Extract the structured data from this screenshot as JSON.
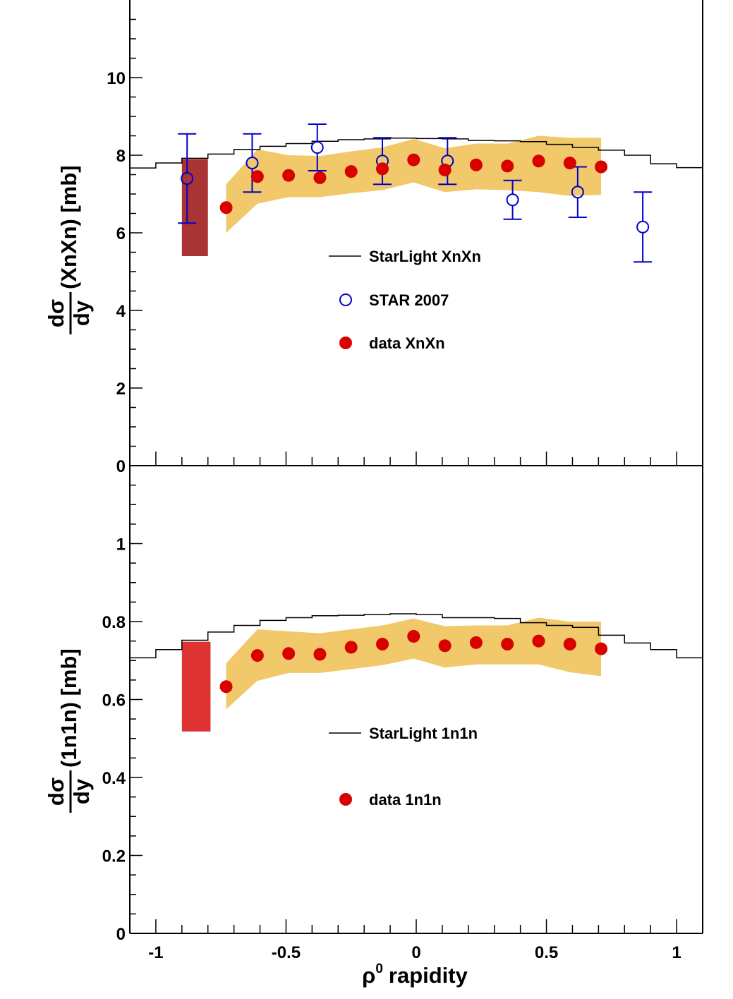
{
  "chart_data": [
    {
      "type": "scatter",
      "panel": "top",
      "ylabel": {
        "frac_num": "dσ",
        "frac_den": "dy",
        "rest": "(XnXn) [mb]"
      },
      "xlim": [
        -1.1,
        1.1
      ],
      "ylim": [
        0,
        12
      ],
      "y_tick_labels": [
        "0",
        "2",
        "4",
        "6",
        "8",
        "10"
      ],
      "y_tick_values": [
        0,
        2,
        4,
        6,
        8,
        10
      ],
      "legend_placement": "center",
      "colors": {
        "data": "#d90000",
        "star": "#0000cc",
        "band": "#f1c86a",
        "syst_box": "#aa3333",
        "model": "#000000"
      },
      "legend": [
        {
          "label": "StarLight XnXn",
          "marker": "line"
        },
        {
          "label": "STAR 2007",
          "marker": "open-circle"
        },
        {
          "label": "data XnXn",
          "marker": "filled-circle"
        }
      ],
      "series": [
        {
          "name": "StarLight XnXn",
          "style": "histogram",
          "bin_edges": [
            -1.1,
            -1.0,
            -0.9,
            -0.8,
            -0.7,
            -0.6,
            -0.5,
            -0.4,
            -0.3,
            -0.2,
            -0.1,
            0.0,
            0.1,
            0.2,
            0.3,
            0.4,
            0.5,
            0.6,
            0.7,
            0.8,
            0.9,
            1.0,
            1.1
          ],
          "values": [
            7.67,
            7.8,
            7.92,
            8.03,
            8.15,
            8.23,
            8.3,
            8.36,
            8.4,
            8.42,
            8.44,
            8.43,
            8.42,
            8.38,
            8.37,
            8.35,
            8.28,
            8.2,
            8.13,
            8.0,
            7.78,
            7.68
          ]
        },
        {
          "name": "STAR 2007",
          "x": [
            -0.88,
            -0.63,
            -0.38,
            -0.13,
            0.12,
            0.37,
            0.62,
            0.87
          ],
          "y": [
            7.4,
            7.8,
            8.2,
            7.85,
            7.85,
            6.85,
            7.05,
            6.15
          ],
          "err": [
            1.15,
            0.75,
            0.6,
            0.6,
            0.6,
            0.5,
            0.65,
            0.9
          ]
        },
        {
          "name": "data XnXn",
          "x": [
            -0.73,
            -0.61,
            -0.49,
            -0.37,
            -0.25,
            -0.13,
            -0.01,
            0.11,
            0.23,
            0.35,
            0.47,
            0.59,
            0.71
          ],
          "y": [
            6.65,
            7.45,
            7.48,
            7.42,
            7.58,
            7.65,
            7.88,
            7.62,
            7.75,
            7.72,
            7.85,
            7.8,
            7.7
          ]
        },
        {
          "name": "systematic band",
          "x": [
            -0.73,
            -0.61,
            -0.49,
            -0.37,
            -0.25,
            -0.13,
            -0.01,
            0.11,
            0.23,
            0.35,
            0.47,
            0.59,
            0.71
          ],
          "low": [
            6.0,
            6.75,
            6.92,
            6.92,
            7.02,
            7.1,
            7.3,
            7.05,
            7.12,
            7.1,
            7.05,
            6.95,
            6.98
          ],
          "high": [
            7.25,
            8.15,
            8.0,
            7.98,
            8.1,
            8.2,
            8.42,
            8.18,
            8.3,
            8.3,
            8.5,
            8.45,
            8.45
          ]
        },
        {
          "name": "luminosity box",
          "x_range": [
            -0.9,
            -0.8
          ],
          "y_range": [
            5.4,
            7.9
          ]
        }
      ]
    },
    {
      "type": "scatter",
      "panel": "bottom",
      "xlabel_symbol": "ρ",
      "xlabel_sup": "0",
      "xlabel_rest": "rapidity",
      "ylabel": {
        "frac_num": "dσ",
        "frac_den": "dy",
        "rest": "(1n1n) [mb]"
      },
      "xlim": [
        -1.1,
        1.1
      ],
      "ylim": [
        0,
        1.2
      ],
      "x_tick_labels": [
        "-1",
        "-0.5",
        "0",
        "0.5",
        "1"
      ],
      "x_tick_values": [
        -1,
        -0.5,
        0,
        0.5,
        1
      ],
      "y_tick_labels": [
        "0",
        "0.2",
        "0.4",
        "0.6",
        "0.8",
        "1"
      ],
      "y_tick_values": [
        0,
        0.2,
        0.4,
        0.6,
        0.8,
        1
      ],
      "legend_placement": "center",
      "colors": {
        "data": "#d90000",
        "band": "#f1c86a",
        "syst_box": "#dd3333",
        "model": "#000000"
      },
      "legend": [
        {
          "label": "StarLight 1n1n",
          "marker": "line"
        },
        {
          "label": "data 1n1n",
          "marker": "filled-circle"
        }
      ],
      "series": [
        {
          "name": "StarLight 1n1n",
          "style": "histogram",
          "bin_edges": [
            -1.1,
            -1.0,
            -0.9,
            -0.8,
            -0.7,
            -0.6,
            -0.5,
            -0.4,
            -0.3,
            -0.2,
            -0.1,
            0.0,
            0.1,
            0.2,
            0.3,
            0.4,
            0.5,
            0.6,
            0.7,
            0.8,
            0.9,
            1.0,
            1.1
          ],
          "values": [
            0.707,
            0.728,
            0.752,
            0.773,
            0.79,
            0.803,
            0.81,
            0.815,
            0.816,
            0.818,
            0.82,
            0.818,
            0.81,
            0.81,
            0.808,
            0.797,
            0.79,
            0.785,
            0.765,
            0.745,
            0.728,
            0.707
          ]
        },
        {
          "name": "data 1n1n",
          "x": [
            -0.73,
            -0.61,
            -0.49,
            -0.37,
            -0.25,
            -0.13,
            -0.01,
            0.11,
            0.23,
            0.35,
            0.47,
            0.59,
            0.71
          ],
          "y": [
            0.633,
            0.713,
            0.718,
            0.716,
            0.734,
            0.742,
            0.762,
            0.738,
            0.746,
            0.742,
            0.75,
            0.742,
            0.73
          ]
        },
        {
          "name": "systematic band",
          "x": [
            -0.73,
            -0.61,
            -0.49,
            -0.37,
            -0.25,
            -0.13,
            -0.01,
            0.11,
            0.23,
            0.35,
            0.47,
            0.59,
            0.71
          ],
          "low": [
            0.575,
            0.648,
            0.668,
            0.668,
            0.678,
            0.688,
            0.705,
            0.682,
            0.69,
            0.69,
            0.69,
            0.67,
            0.66
          ],
          "high": [
            0.693,
            0.78,
            0.775,
            0.77,
            0.78,
            0.79,
            0.808,
            0.788,
            0.79,
            0.79,
            0.81,
            0.8,
            0.8
          ]
        },
        {
          "name": "luminosity box",
          "x_range": [
            -0.9,
            -0.79
          ],
          "y_range": [
            0.518,
            0.748
          ]
        }
      ]
    }
  ]
}
